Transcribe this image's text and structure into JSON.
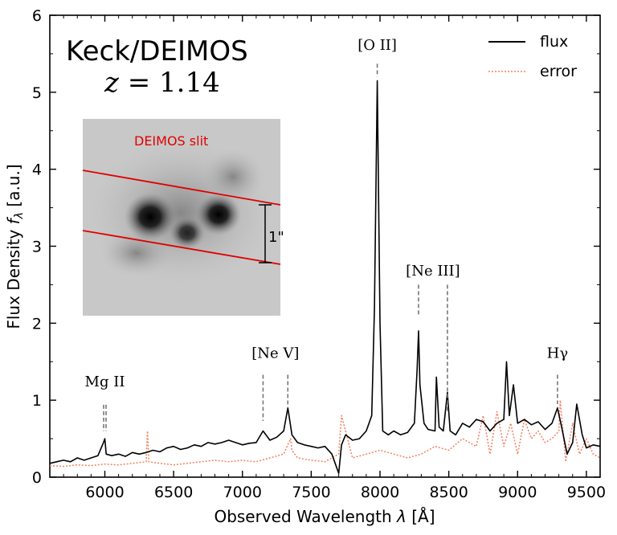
{
  "chart_data": {
    "type": "line",
    "title": "",
    "xlabel_prefix": "Observed Wavelength ",
    "xlabel_var": "λ",
    "xlabel_suffix": " [Å]",
    "ylabel_prefix": "Flux Density ",
    "ylabel_var": "f",
    "ylabel_sub": "λ",
    "ylabel_suffix": " [a.u.]",
    "xlim": [
      5600,
      9600
    ],
    "ylim": [
      0,
      6
    ],
    "x_ticks": [
      6000,
      6500,
      7000,
      7500,
      8000,
      8500,
      9000,
      9500
    ],
    "y_ticks": [
      0,
      1,
      2,
      3,
      4,
      5,
      6
    ],
    "legend": {
      "placement": "top-right",
      "entries": [
        {
          "label": "flux",
          "color": "#000000",
          "style": "solid"
        },
        {
          "label": "error",
          "color": "#f08060",
          "style": "dotted"
        }
      ]
    },
    "annotations": {
      "instrument": "Keck/DEIMOS",
      "redshift_var": "z",
      "redshift_value": " = 1.14",
      "inset": {
        "slit_label": "DEIMOS slit",
        "aperture_label": "1\""
      }
    },
    "emission_lines": [
      {
        "label": "Mg II",
        "x": [
          5990,
          6010
        ],
        "y_top": 0.94,
        "y_bottom": 0.6,
        "label_y": 1.18
      },
      {
        "label": "[Ne V]",
        "x": [
          7150
        ],
        "y_top": 1.33,
        "y_bottom": 0.73,
        "label_y": 1.55
      },
      {
        "label": "[Ne V]",
        "x": [
          7330
        ],
        "y_top": 1.33,
        "y_bottom": 0.9,
        "hidden_label": true
      },
      {
        "label": "[O II]",
        "x": [
          7980
        ],
        "y_top": 5.37,
        "y_bottom": 5.2,
        "label_y": 5.55
      },
      {
        "label": "[Ne III]",
        "x": [
          8280
        ],
        "y_top": 2.5,
        "y_bottom": 2.1,
        "label_y": 2.62
      },
      {
        "label": "[Ne III]",
        "x": [
          8490
        ],
        "y_top": 2.5,
        "y_bottom": 0.85,
        "hidden_label": true
      },
      {
        "label": "Hγ",
        "x": [
          9290
        ],
        "y_top": 1.33,
        "y_bottom": 0.95,
        "label_y": 1.55
      }
    ],
    "series": [
      {
        "name": "flux",
        "color": "#000000",
        "style": "solid",
        "x": [
          5600,
          5650,
          5700,
          5750,
          5800,
          5850,
          5900,
          5950,
          5990,
          6000,
          6010,
          6050,
          6100,
          6150,
          6200,
          6250,
          6300,
          6350,
          6400,
          6450,
          6500,
          6550,
          6600,
          6650,
          6700,
          6750,
          6800,
          6850,
          6900,
          6950,
          7000,
          7050,
          7100,
          7150,
          7200,
          7250,
          7300,
          7330,
          7360,
          7400,
          7450,
          7500,
          7550,
          7600,
          7650,
          7700,
          7720,
          7750,
          7800,
          7850,
          7900,
          7940,
          7960,
          7980,
          8000,
          8020,
          8060,
          8100,
          8150,
          8200,
          8250,
          8270,
          8280,
          8290,
          8320,
          8350,
          8400,
          8410,
          8430,
          8460,
          8490,
          8510,
          8550,
          8600,
          8650,
          8700,
          8750,
          8800,
          8850,
          8900,
          8920,
          8940,
          8970,
          9000,
          9050,
          9100,
          9150,
          9200,
          9250,
          9290,
          9320,
          9360,
          9400,
          9430,
          9470,
          9500,
          9550,
          9600
        ],
        "values": [
          0.18,
          0.2,
          0.22,
          0.2,
          0.25,
          0.22,
          0.25,
          0.28,
          0.45,
          0.5,
          0.3,
          0.28,
          0.3,
          0.27,
          0.32,
          0.3,
          0.32,
          0.35,
          0.33,
          0.38,
          0.4,
          0.36,
          0.38,
          0.42,
          0.4,
          0.45,
          0.43,
          0.45,
          0.48,
          0.45,
          0.42,
          0.44,
          0.45,
          0.6,
          0.48,
          0.52,
          0.6,
          0.9,
          0.55,
          0.45,
          0.42,
          0.4,
          0.38,
          0.4,
          0.3,
          0.05,
          0.42,
          0.55,
          0.48,
          0.5,
          0.6,
          0.8,
          2.2,
          5.15,
          2.0,
          0.6,
          0.55,
          0.6,
          0.55,
          0.58,
          0.7,
          1.4,
          1.9,
          1.2,
          0.7,
          0.62,
          0.6,
          1.3,
          0.65,
          0.6,
          1.1,
          0.6,
          0.55,
          0.7,
          0.65,
          0.75,
          0.72,
          0.6,
          0.7,
          0.75,
          1.5,
          0.8,
          1.2,
          0.7,
          0.75,
          0.68,
          0.72,
          0.62,
          0.7,
          0.9,
          0.65,
          0.3,
          0.45,
          0.95,
          0.55,
          0.38,
          0.42,
          0.4
        ]
      },
      {
        "name": "error",
        "color": "#f08060",
        "style": "dotted",
        "x": [
          5600,
          5700,
          5800,
          5900,
          6000,
          6100,
          6200,
          6300,
          6310,
          6320,
          6400,
          6500,
          6600,
          6700,
          6800,
          6900,
          7000,
          7100,
          7200,
          7300,
          7350,
          7360,
          7400,
          7500,
          7600,
          7700,
          7720,
          7800,
          7900,
          8000,
          8100,
          8200,
          8300,
          8400,
          8500,
          8600,
          8700,
          8750,
          8800,
          8850,
          8900,
          8950,
          9000,
          9050,
          9100,
          9150,
          9200,
          9250,
          9300,
          9310,
          9350,
          9400,
          9450,
          9500,
          9550,
          9600
        ],
        "values": [
          0.15,
          0.14,
          0.16,
          0.15,
          0.17,
          0.16,
          0.18,
          0.2,
          0.6,
          0.2,
          0.18,
          0.16,
          0.18,
          0.2,
          0.22,
          0.2,
          0.22,
          0.2,
          0.25,
          0.3,
          0.5,
          0.35,
          0.25,
          0.22,
          0.2,
          0.3,
          0.8,
          0.25,
          0.3,
          0.35,
          0.3,
          0.25,
          0.3,
          0.4,
          0.35,
          0.5,
          0.4,
          0.8,
          0.3,
          0.85,
          0.4,
          0.7,
          0.3,
          0.75,
          0.5,
          0.6,
          0.45,
          0.5,
          0.6,
          1.0,
          0.2,
          0.7,
          0.3,
          0.5,
          0.3,
          0.25
        ]
      }
    ]
  }
}
